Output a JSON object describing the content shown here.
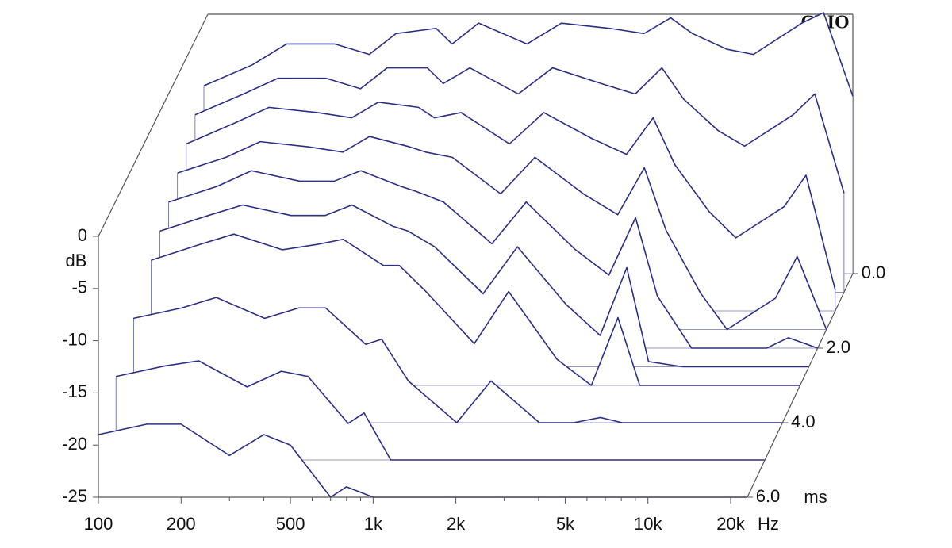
{
  "chart_data": {
    "type": "waterfall",
    "watermark": "CLIO",
    "x_label": "Hz",
    "y_label": "dB",
    "z_label": "ms",
    "color": "#2b2f86",
    "log_x": true,
    "xlim": [
      100,
      23000
    ],
    "xticks": [
      {
        "value": 100,
        "label": "100"
      },
      {
        "value": 200,
        "label": "200"
      },
      {
        "value": 500,
        "label": "500"
      },
      {
        "value": 1000,
        "label": "1k"
      },
      {
        "value": 2000,
        "label": "2k"
      },
      {
        "value": 5000,
        "label": "5k"
      },
      {
        "value": 10000,
        "label": "10k"
      },
      {
        "value": 20000,
        "label": "20k"
      }
    ],
    "xminorticks": [
      300,
      400,
      600,
      700,
      800,
      900,
      3000,
      4000,
      6000,
      7000,
      8000,
      9000
    ],
    "ylim": [
      -25,
      0
    ],
    "yticks": [
      -25,
      -20,
      -15,
      -10,
      -5,
      0
    ],
    "zlim": [
      0,
      6
    ],
    "zticks": [
      {
        "value": 0,
        "label": "0.0"
      },
      {
        "value": 2,
        "label": "2.0"
      },
      {
        "value": 4,
        "label": "4.0"
      },
      {
        "value": 6,
        "label": "6.0"
      }
    ],
    "x": [
      100,
      150,
      200,
      300,
      400,
      500,
      700,
      800,
      1000,
      1500,
      2000,
      3000,
      4000,
      5000,
      6000,
      8000,
      10000,
      15000,
      18000,
      23000
    ],
    "slices": [
      {
        "time": 0,
        "values": [
          -7,
          -5,
          -3,
          -3,
          -4,
          -2,
          -1.5,
          -3,
          -1,
          -3,
          -1,
          -1.5,
          -2,
          -0.5,
          -2,
          -3.5,
          -4,
          -1,
          0,
          -8
        ]
      },
      {
        "time": 0.5,
        "values": [
          -8,
          -6,
          -4.5,
          -4.5,
          -5.5,
          -3.5,
          -3.5,
          -5,
          -3.5,
          -6,
          -3.5,
          -5,
          -6,
          -3.5,
          -6.5,
          -9.5,
          -11,
          -8,
          -6,
          -15.5
        ]
      },
      {
        "time": 1,
        "values": [
          -9,
          -7,
          -5.5,
          -6,
          -6.5,
          -5,
          -5.5,
          -6.5,
          -6,
          -9,
          -6,
          -8.5,
          -10,
          -6.5,
          -11,
          -15.5,
          -18,
          -15,
          -12,
          -23
        ]
      },
      {
        "time": 1.5,
        "values": [
          -10,
          -8.5,
          -7,
          -7.5,
          -8,
          -6.5,
          -7.5,
          -8,
          -8.5,
          -12,
          -8.5,
          -12,
          -14,
          -9.5,
          -15.5,
          -21.5,
          -25,
          -22,
          -18,
          -25
        ]
      },
      {
        "time": 2,
        "values": [
          -11,
          -9.5,
          -8,
          -9,
          -9,
          -8,
          -9.5,
          -10,
          -11,
          -15,
          -11,
          -15.5,
          -18,
          -12.5,
          -20,
          -25,
          -25,
          -25,
          -24,
          -25
        ]
      },
      {
        "time": 2.5,
        "values": [
          -12,
          -10.5,
          -9.5,
          -10.5,
          -10.5,
          -9.5,
          -11.5,
          -12,
          -13.5,
          -18,
          -13.5,
          -19,
          -22,
          -15.5,
          -24.5,
          -25,
          -25,
          -25,
          -25,
          -25
        ]
      },
      {
        "time": 3,
        "values": [
          -13,
          -11.5,
          -10.5,
          -12,
          -11.5,
          -11,
          -13.5,
          -13.5,
          -16,
          -21,
          -16,
          -22.5,
          -25,
          -18.5,
          -25,
          -25,
          -25,
          -25,
          -25,
          -25
        ]
      },
      {
        "time": 4,
        "values": [
          -15,
          -14,
          -13,
          -15,
          -14,
          -14,
          -17.5,
          -17,
          -21,
          -25,
          -21,
          -25,
          -25,
          -24.5,
          -25,
          -25,
          -25,
          -25,
          -25,
          -25
        ]
      },
      {
        "time": 5,
        "values": [
          -17,
          -16,
          -15.5,
          -18,
          -16.5,
          -17,
          -21.5,
          -20.5,
          -25,
          -25,
          -25,
          -25,
          -25,
          -25,
          -25,
          -25,
          -25,
          -25,
          -25,
          -25
        ]
      },
      {
        "time": 6,
        "values": [
          -19,
          -18,
          -18,
          -21,
          -19,
          -20,
          -25,
          -24,
          -25,
          -25,
          -25,
          -25,
          -25,
          -25,
          -25,
          -25,
          -25,
          -25,
          -25,
          -25
        ]
      }
    ]
  }
}
